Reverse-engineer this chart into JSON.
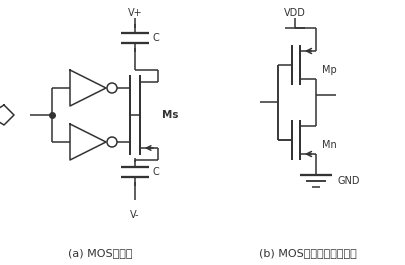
{
  "fig_width": 4.06,
  "fig_height": 2.65,
  "dpi": 100,
  "bg_color": "#ffffff",
  "line_color": "#333333",
  "line_width": 1.1,
  "caption_a": "(a) MOS开关管",
  "caption_b": "(b) MOS开关管中的反相器",
  "label_Vplus": "V+",
  "label_Vminus": "V-",
  "label_C": "C",
  "label_Ms": "Ms",
  "label_VDD": "VDD",
  "label_GND": "GND",
  "label_Mp": "Mp",
  "label_Mn": "Mn"
}
